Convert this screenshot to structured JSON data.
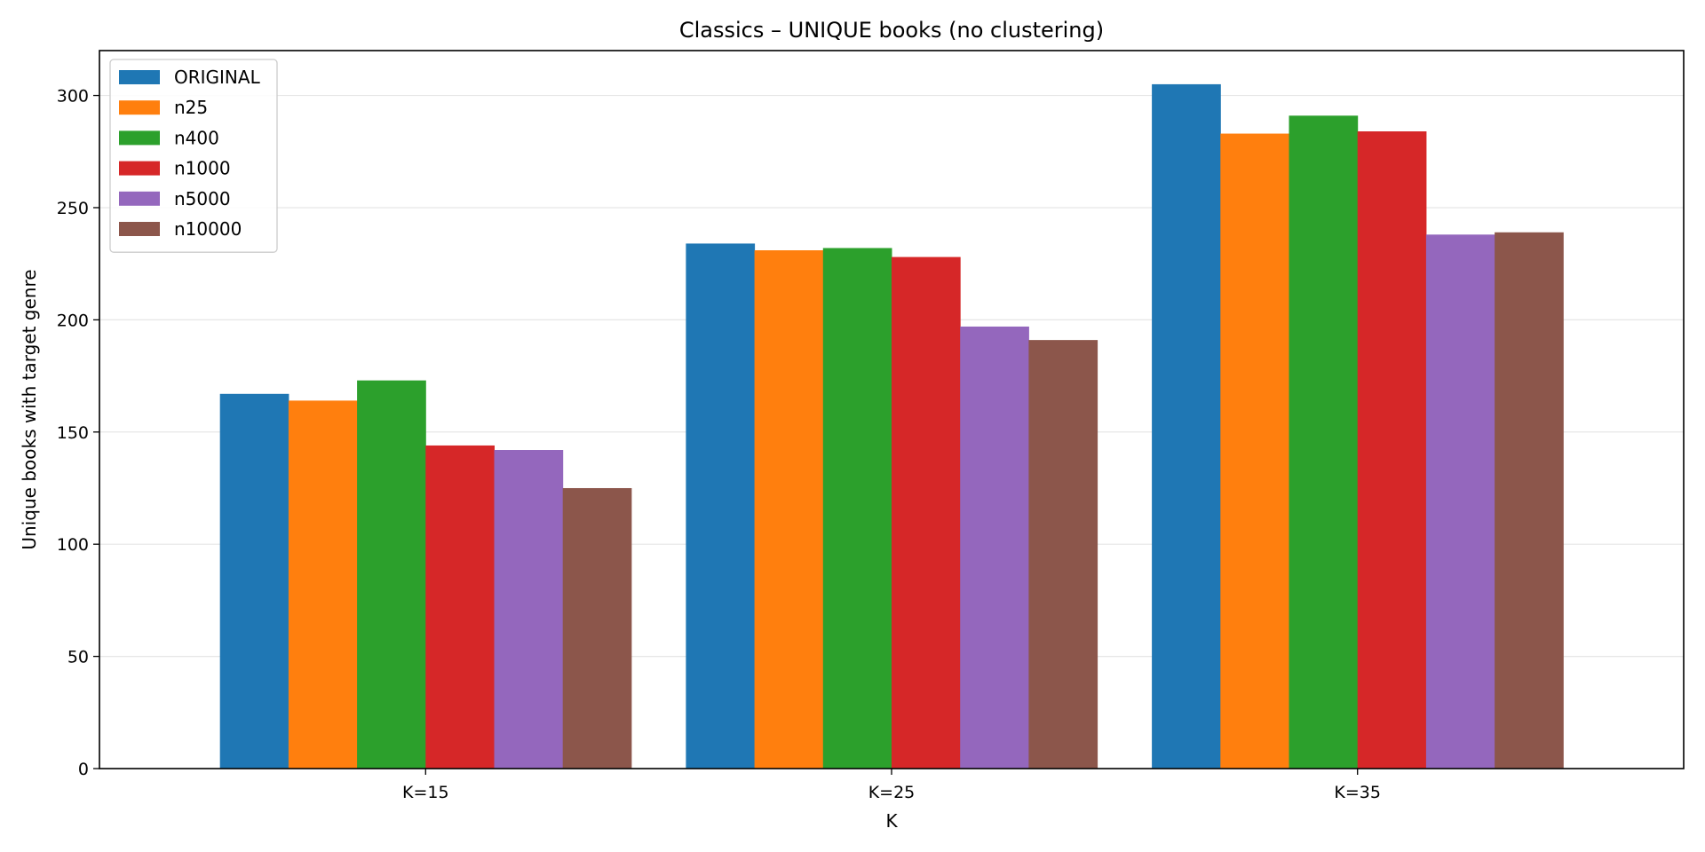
{
  "chart_data": {
    "type": "bar",
    "title": "Classics – UNIQUE books (no clustering)",
    "xlabel": "K",
    "ylabel": "Unique books with target genre",
    "categories": [
      "K=15",
      "K=25",
      "K=35"
    ],
    "ylim": [
      0,
      320
    ],
    "yticks": [
      0,
      50,
      100,
      150,
      200,
      250,
      300
    ],
    "grid": "horizontal",
    "legend_position": "top-left",
    "series": [
      {
        "name": "ORIGINAL",
        "color": "#1f77b4",
        "values": [
          167,
          234,
          305
        ]
      },
      {
        "name": "n25",
        "color": "#ff7f0e",
        "values": [
          164,
          231,
          283
        ]
      },
      {
        "name": "n400",
        "color": "#2ca02c",
        "values": [
          173,
          232,
          291
        ]
      },
      {
        "name": "n1000",
        "color": "#d62728",
        "values": [
          144,
          228,
          284
        ]
      },
      {
        "name": "n5000",
        "color": "#9467bd",
        "values": [
          142,
          197,
          238
        ]
      },
      {
        "name": "n10000",
        "color": "#8c564b",
        "values": [
          125,
          191,
          239
        ]
      }
    ]
  }
}
